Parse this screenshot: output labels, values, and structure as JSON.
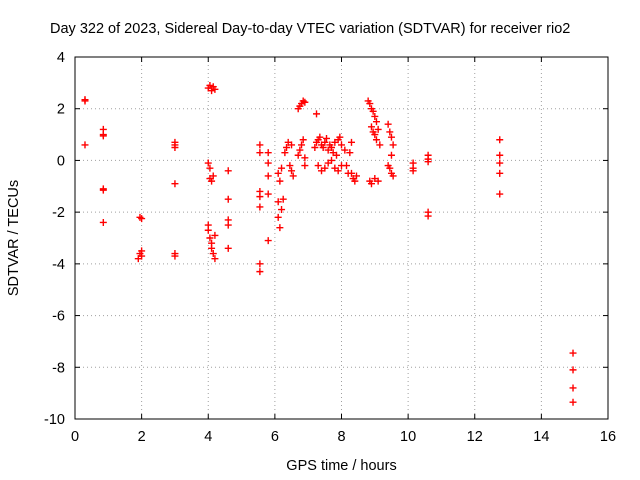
{
  "chart_data": {
    "type": "scatter",
    "title": "Day 322 of 2023, Sidereal Day-to-day VTEC variation (SDTVAR) for receiver rio2",
    "xlabel": "GPS time / hours",
    "ylabel": "SDTVAR / TECUs",
    "xlim": [
      0,
      16
    ],
    "ylim": [
      -10,
      4
    ],
    "xticks": [
      0,
      2,
      4,
      6,
      8,
      10,
      12,
      14,
      16
    ],
    "yticks": [
      -10,
      -8,
      -6,
      -4,
      -2,
      0,
      2,
      4
    ],
    "xtick_labels": [
      "0",
      "2",
      "4",
      "6",
      "8",
      "10",
      "12",
      "14",
      "16"
    ],
    "ytick_labels": [
      "-10",
      "-8",
      "-6",
      "-4",
      "-2",
      "0",
      "2",
      "4"
    ],
    "grid": true,
    "marker": "+",
    "colors": {
      "series": "#ff0000",
      "grid": "#a0a0a0",
      "axis": "#000000"
    },
    "series": [
      {
        "name": "SDTVAR",
        "points": [
          [
            0.3,
            2.35
          ],
          [
            0.3,
            2.3
          ],
          [
            0.3,
            0.6
          ],
          [
            0.85,
            1.2
          ],
          [
            0.85,
            1.0
          ],
          [
            0.85,
            0.95
          ],
          [
            0.85,
            -1.1
          ],
          [
            0.85,
            -1.15
          ],
          [
            0.85,
            -2.4
          ],
          [
            1.95,
            -2.2
          ],
          [
            2.0,
            -2.25
          ],
          [
            1.95,
            -3.6
          ],
          [
            1.9,
            -3.8
          ],
          [
            2.0,
            -3.7
          ],
          [
            2.0,
            -3.5
          ],
          [
            3.0,
            0.7
          ],
          [
            3.0,
            0.6
          ],
          [
            3.0,
            0.5
          ],
          [
            3.0,
            -0.9
          ],
          [
            3.0,
            -3.6
          ],
          [
            3.0,
            -3.7
          ],
          [
            4.0,
            2.8
          ],
          [
            4.05,
            2.9
          ],
          [
            4.1,
            2.7
          ],
          [
            4.15,
            2.85
          ],
          [
            4.2,
            2.75
          ],
          [
            4.0,
            -0.1
          ],
          [
            4.05,
            -0.3
          ],
          [
            4.05,
            -0.7
          ],
          [
            4.1,
            -0.8
          ],
          [
            4.15,
            -0.6
          ],
          [
            4.0,
            -2.5
          ],
          [
            4.0,
            -2.7
          ],
          [
            4.05,
            -3.0
          ],
          [
            4.1,
            -3.2
          ],
          [
            4.1,
            -3.4
          ],
          [
            4.15,
            -3.6
          ],
          [
            4.2,
            -3.8
          ],
          [
            4.2,
            -2.9
          ],
          [
            4.6,
            -0.4
          ],
          [
            4.6,
            -1.5
          ],
          [
            4.6,
            -2.3
          ],
          [
            4.6,
            -2.5
          ],
          [
            4.6,
            -3.4
          ],
          [
            5.55,
            0.6
          ],
          [
            5.55,
            0.3
          ],
          [
            5.55,
            -1.2
          ],
          [
            5.55,
            -1.4
          ],
          [
            5.55,
            -1.8
          ],
          [
            5.55,
            -4.0
          ],
          [
            5.55,
            -4.3
          ],
          [
            5.8,
            0.3
          ],
          [
            5.8,
            -0.1
          ],
          [
            5.8,
            -0.6
          ],
          [
            5.8,
            -1.3
          ],
          [
            5.8,
            -3.1
          ],
          [
            6.1,
            -0.5
          ],
          [
            6.15,
            -0.8
          ],
          [
            6.2,
            -0.3
          ],
          [
            6.1,
            -1.6
          ],
          [
            6.1,
            -2.2
          ],
          [
            6.15,
            -2.6
          ],
          [
            6.2,
            -1.9
          ],
          [
            6.25,
            -1.5
          ],
          [
            6.3,
            0.3
          ],
          [
            6.35,
            0.5
          ],
          [
            6.4,
            0.7
          ],
          [
            6.45,
            -0.2
          ],
          [
            6.5,
            -0.4
          ],
          [
            6.5,
            0.6
          ],
          [
            6.55,
            -0.6
          ],
          [
            6.7,
            0.2
          ],
          [
            6.75,
            0.4
          ],
          [
            6.8,
            0.6
          ],
          [
            6.85,
            0.8
          ],
          [
            6.9,
            0.1
          ],
          [
            6.9,
            -0.2
          ],
          [
            6.7,
            2.0
          ],
          [
            6.75,
            2.1
          ],
          [
            6.8,
            2.2
          ],
          [
            6.85,
            2.3
          ],
          [
            6.9,
            2.25
          ],
          [
            7.25,
            1.8
          ],
          [
            7.2,
            0.5
          ],
          [
            7.25,
            0.7
          ],
          [
            7.3,
            0.8
          ],
          [
            7.35,
            0.9
          ],
          [
            7.4,
            0.6
          ],
          [
            7.45,
            0.5
          ],
          [
            7.5,
            0.7
          ],
          [
            7.55,
            0.85
          ],
          [
            7.6,
            0.4
          ],
          [
            7.65,
            0.6
          ],
          [
            7.7,
            0.5
          ],
          [
            7.75,
            0.3
          ],
          [
            7.8,
            0.7
          ],
          [
            7.85,
            0.2
          ],
          [
            7.9,
            0.8
          ],
          [
            7.95,
            0.9
          ],
          [
            8.0,
            0.6
          ],
          [
            7.3,
            -0.2
          ],
          [
            7.4,
            -0.4
          ],
          [
            7.5,
            -0.3
          ],
          [
            7.6,
            -0.1
          ],
          [
            7.7,
            0.0
          ],
          [
            7.8,
            -0.3
          ],
          [
            7.9,
            -0.4
          ],
          [
            8.0,
            -0.2
          ],
          [
            8.1,
            0.4
          ],
          [
            8.15,
            -0.2
          ],
          [
            8.2,
            -0.5
          ],
          [
            8.25,
            0.3
          ],
          [
            8.3,
            0.7
          ],
          [
            8.3,
            -0.5
          ],
          [
            8.35,
            -0.7
          ],
          [
            8.4,
            -0.8
          ],
          [
            8.45,
            -0.6
          ],
          [
            8.8,
            2.3
          ],
          [
            8.85,
            2.2
          ],
          [
            8.9,
            2.0
          ],
          [
            8.95,
            1.9
          ],
          [
            9.0,
            1.7
          ],
          [
            9.05,
            1.5
          ],
          [
            8.9,
            1.3
          ],
          [
            8.95,
            1.1
          ],
          [
            9.0,
            1.0
          ],
          [
            9.05,
            0.8
          ],
          [
            9.1,
            1.2
          ],
          [
            9.15,
            0.6
          ],
          [
            8.85,
            -0.8
          ],
          [
            8.9,
            -0.9
          ],
          [
            9.0,
            -0.7
          ],
          [
            9.1,
            -0.8
          ],
          [
            9.4,
            1.4
          ],
          [
            9.45,
            1.1
          ],
          [
            9.5,
            0.9
          ],
          [
            9.55,
            0.6
          ],
          [
            9.5,
            0.2
          ],
          [
            9.4,
            -0.2
          ],
          [
            9.45,
            -0.3
          ],
          [
            9.5,
            -0.5
          ],
          [
            9.55,
            -0.6
          ],
          [
            10.15,
            -0.1
          ],
          [
            10.15,
            -0.3
          ],
          [
            10.15,
            -0.4
          ],
          [
            10.6,
            0.2
          ],
          [
            10.6,
            0.05
          ],
          [
            10.6,
            -0.05
          ],
          [
            10.6,
            -2.0
          ],
          [
            10.6,
            -2.15
          ],
          [
            12.75,
            0.8
          ],
          [
            12.75,
            0.2
          ],
          [
            12.75,
            -0.1
          ],
          [
            12.75,
            -0.5
          ],
          [
            12.75,
            -1.3
          ],
          [
            14.95,
            -7.45
          ],
          [
            14.95,
            -8.1
          ],
          [
            14.95,
            -8.8
          ],
          [
            14.95,
            -9.35
          ]
        ]
      }
    ]
  }
}
